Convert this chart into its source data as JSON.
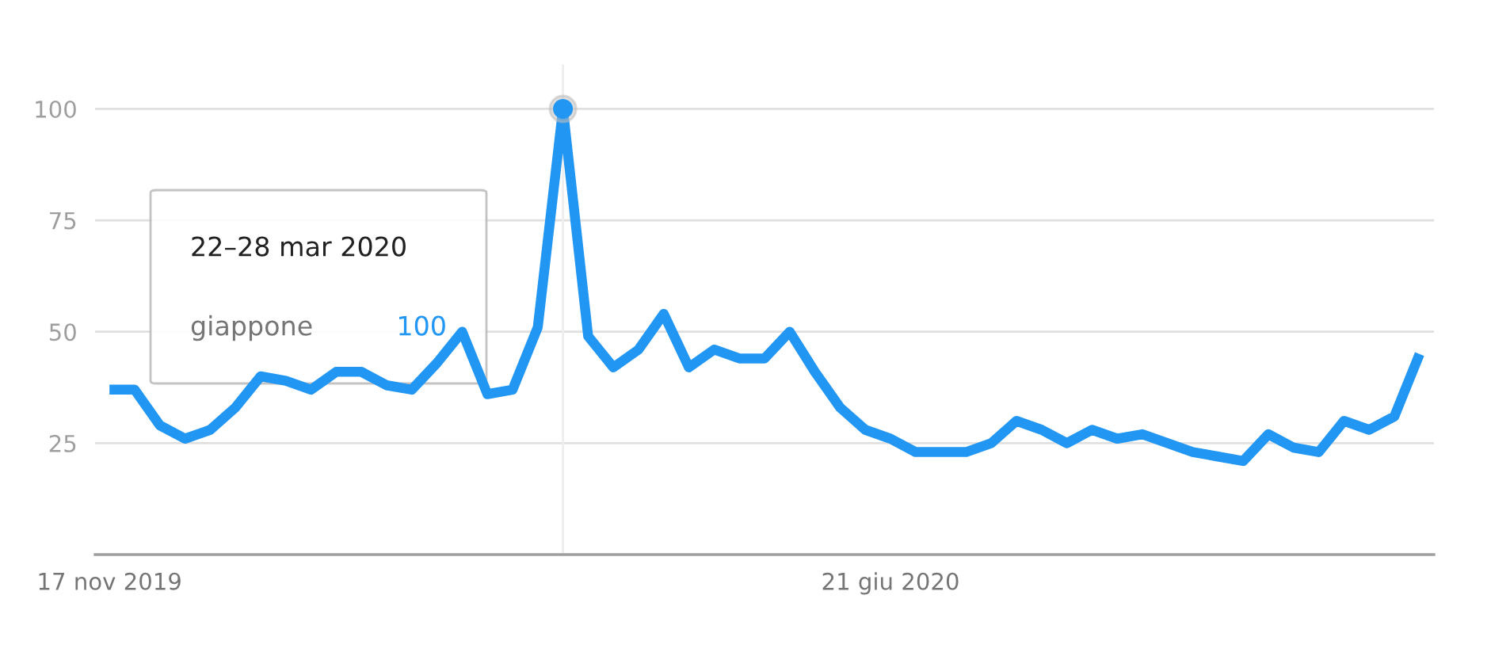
{
  "chart_data": {
    "type": "line",
    "x": [
      "2019-11-17",
      "2019-11-24",
      "2019-12-01",
      "2019-12-08",
      "2019-12-15",
      "2019-12-22",
      "2019-12-29",
      "2020-01-05",
      "2020-01-12",
      "2020-01-19",
      "2020-01-26",
      "2020-02-02",
      "2020-02-09",
      "2020-02-16",
      "2020-02-23",
      "2020-03-01",
      "2020-03-08",
      "2020-03-15",
      "2020-03-22",
      "2020-03-29",
      "2020-04-05",
      "2020-04-12",
      "2020-04-19",
      "2020-04-26",
      "2020-05-03",
      "2020-05-10",
      "2020-05-17",
      "2020-05-24",
      "2020-05-31",
      "2020-06-07",
      "2020-06-14",
      "2020-06-21",
      "2020-06-28",
      "2020-07-05",
      "2020-07-12",
      "2020-07-19",
      "2020-07-26",
      "2020-08-02",
      "2020-08-09",
      "2020-08-16",
      "2020-08-23",
      "2020-08-30",
      "2020-09-06",
      "2020-09-13",
      "2020-09-20",
      "2020-09-27",
      "2020-10-04",
      "2020-10-11",
      "2020-10-18",
      "2020-10-25",
      "2020-11-01",
      "2020-11-08",
      "2020-11-15"
    ],
    "series": [
      {
        "name": "giappone",
        "color": "#2196f3",
        "values": [
          37,
          37,
          29,
          26,
          28,
          33,
          40,
          39,
          37,
          41,
          41,
          38,
          37,
          43,
          50,
          36,
          37,
          51,
          100,
          49,
          42,
          46,
          54,
          42,
          46,
          44,
          44,
          50,
          41,
          33,
          28,
          26,
          23,
          23,
          23,
          25,
          30,
          28,
          25,
          28,
          26,
          27,
          25,
          23,
          22,
          21,
          27,
          24,
          23,
          30,
          28,
          31,
          45
        ]
      }
    ],
    "xlim": [
      "2019-11-13",
      "2020-11-19"
    ],
    "xticks": [
      {
        "value": "2019-11-17",
        "label": "17 nov 2019"
      },
      {
        "value": "2020-06-21",
        "label": "21 giu 2020"
      }
    ],
    "ylim": [
      0,
      110
    ],
    "yticks": [
      25,
      50,
      75,
      100
    ],
    "grid": "y",
    "legend": false,
    "ref_lines": [
      {
        "axis": "x",
        "value": "2020-03-22",
        "color": "#eeeeee"
      }
    ],
    "annotations": [
      "22–28 mar 2020",
      "100"
    ]
  }
}
